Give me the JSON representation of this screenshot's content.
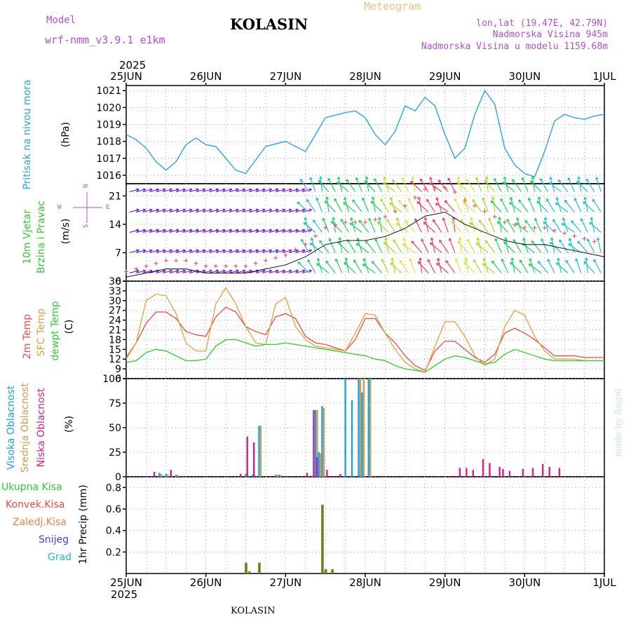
{
  "header": {
    "model_label": "Model",
    "model_name": "wrf-nmm_v3.9.1  e1km",
    "station": "KOLASIN",
    "title": "Meteogram",
    "coords": "lon,lat (19.47E, 42.79N)",
    "elevation": "Nadmorska Visina 945m",
    "model_elevation": "Nadmorska Visina u modelu 1159.68m",
    "year": "2025",
    "footer_station": "KOLASIN",
    "credit": "made by Angel"
  },
  "colors": {
    "pressure": "#2aa4e0",
    "temp_2m": "#e84a4a",
    "temp_sfc": "#e0a040",
    "dewpoint": "#2ecc2e",
    "cloud_high": "#1aa0e8",
    "cloud_mid": "#c8a050",
    "cloud_low": "#d02090",
    "precip": "#8a7020",
    "label_model": "#b050d0",
    "label_title": "#f0c080"
  },
  "x_axis": {
    "date_labels": [
      "25JUN",
      "26JUN",
      "27JUN",
      "28JUN",
      "29JUN",
      "30JUN",
      "1JUL"
    ]
  },
  "panels": {
    "pressure": {
      "label_lines": [
        "Pritisak na nivou mora"
      ],
      "unit": "(hPa)",
      "ticks": [
        "1016",
        "1017",
        "1018",
        "1019",
        "1020",
        "1021"
      ]
    },
    "wind": {
      "label_lines": [
        "10m Vjetar",
        "Brzina i Pravac"
      ],
      "unit": "(m/s)",
      "ticks": [
        "0",
        "7",
        "14",
        "21"
      ],
      "compass_w": "W",
      "compass_n": "N",
      "compass_e": "E",
      "compass_s": "S"
    },
    "temperature": {
      "label_lines": [
        "2m Temp",
        "SFC Temp",
        "dewpt Temp"
      ],
      "unit": "(C)",
      "ticks": [
        "6",
        "9",
        "12",
        "15",
        "18",
        "21",
        "24",
        "27",
        "30",
        "33",
        "36"
      ]
    },
    "clouds": {
      "label_lines": [
        "Visoka Oblacnost",
        "Srednja Oblacnost",
        "Niska Oblacnost"
      ],
      "unit": "(%)",
      "ticks": [
        "0",
        "25",
        "50",
        "75",
        "100"
      ]
    },
    "precip": {
      "legend": [
        "Ukupna Kisa",
        "Konvek.Kisa",
        "Zaledj.Kisa",
        "Snijeg",
        "Grad"
      ],
      "unit": "1hr Precip (mm)",
      "ticks": [
        "0.2",
        "0.4",
        "0.6",
        "0.8"
      ]
    }
  },
  "chart_data": [
    {
      "type": "line",
      "panel": "pressure",
      "ylabel": "(hPa)",
      "ylim": [
        1015.5,
        1021.3
      ],
      "series": [
        {
          "x": [
            0,
            3,
            6,
            9,
            12,
            15,
            18,
            21,
            24,
            27,
            30,
            33,
            36,
            42,
            48,
            54,
            60,
            66,
            69,
            72,
            75,
            78,
            81,
            84,
            87,
            90,
            93,
            96,
            99,
            102,
            105,
            108,
            111,
            114,
            117,
            120,
            123,
            126,
            129,
            132,
            135,
            138,
            141,
            144
          ],
          "values": [
            1018.4,
            1018.1,
            1017.6,
            1016.8,
            1016.3,
            1016.8,
            1017.8,
            1018.2,
            1017.8,
            1017.7,
            1017.0,
            1016.3,
            1016.1,
            1017.7,
            1018.0,
            1017.4,
            1019.4,
            1019.7,
            1019.8,
            1019.4,
            1018.4,
            1017.8,
            1018.6,
            1020.1,
            1019.8,
            1020.6,
            1020.1,
            1018.4,
            1017.0,
            1017.6,
            1019.6,
            1021.0,
            1020.2,
            1017.6,
            1016.6,
            1016.1,
            1015.9,
            1017.4,
            1019.2,
            1019.6,
            1019.4,
            1019.3,
            1019.5,
            1019.6
          ]
        }
      ]
    },
    {
      "type": "line",
      "panel": "temperature",
      "ylabel": "(C)",
      "ylim": [
        6,
        36
      ],
      "series": [
        {
          "name": "2m Temp",
          "x": [
            0,
            3,
            6,
            9,
            12,
            15,
            18,
            21,
            24,
            27,
            30,
            33,
            36,
            39,
            42,
            45,
            48,
            51,
            54,
            57,
            60,
            63,
            66,
            69,
            72,
            75,
            78,
            81,
            84,
            87,
            90,
            93,
            96,
            99,
            102,
            105,
            108,
            111,
            114,
            117,
            120,
            123,
            126,
            129,
            132,
            135,
            138,
            141,
            144
          ],
          "values": [
            12.5,
            17,
            23,
            26.5,
            26.5,
            24.5,
            20.5,
            19.5,
            19,
            25,
            28,
            26.5,
            22,
            20.5,
            19.5,
            25,
            26,
            24.5,
            19,
            17,
            16.5,
            15.5,
            14.5,
            18,
            24.5,
            24.5,
            20,
            17,
            13,
            10,
            8.5,
            14.5,
            17.5,
            17.5,
            15,
            12.5,
            11,
            13.5,
            20,
            21.5,
            20,
            18,
            15.5,
            13,
            13,
            13,
            12.5,
            12.5,
            12.5
          ]
        },
        {
          "name": "SFC Temp",
          "x": [
            0,
            3,
            6,
            9,
            12,
            15,
            18,
            21,
            24,
            27,
            30,
            33,
            36,
            39,
            42,
            45,
            48,
            51,
            54,
            57,
            60,
            63,
            66,
            69,
            72,
            75,
            78,
            81,
            84,
            87,
            90,
            93,
            96,
            99,
            102,
            105,
            108,
            111,
            114,
            117,
            120,
            123,
            126,
            129,
            132,
            135,
            138,
            141,
            144
          ],
          "values": [
            12,
            17,
            30,
            32,
            31.5,
            26,
            17,
            14.5,
            14.5,
            29,
            34,
            29,
            22,
            17,
            16.5,
            29,
            31,
            22,
            18,
            16,
            15.5,
            15,
            14.5,
            20,
            26,
            25.5,
            20,
            15,
            11,
            9,
            8,
            16,
            23.5,
            23.5,
            19,
            13,
            10,
            12,
            22,
            27,
            25.5,
            19,
            14.5,
            12,
            12,
            12,
            11.5,
            11.5,
            11.5
          ]
        },
        {
          "name": "dewpt Temp",
          "x": [
            0,
            3,
            6,
            9,
            12,
            15,
            18,
            21,
            24,
            27,
            30,
            33,
            36,
            39,
            42,
            45,
            48,
            51,
            54,
            57,
            60,
            63,
            66,
            69,
            72,
            75,
            78,
            81,
            84,
            87,
            90,
            93,
            96,
            99,
            102,
            105,
            108,
            111,
            114,
            117,
            120,
            123,
            126,
            129,
            132,
            135,
            138,
            141,
            144
          ],
          "values": [
            11,
            11.5,
            14,
            15,
            14.5,
            13,
            11.5,
            11.5,
            12,
            16,
            18,
            18,
            17,
            16,
            16.5,
            16.5,
            17,
            16.5,
            16,
            15.5,
            15,
            14.5,
            14,
            13.5,
            13,
            12,
            11.5,
            10,
            9,
            8.5,
            8,
            10,
            12,
            13,
            12.5,
            11.5,
            10.5,
            11,
            13.5,
            15,
            14,
            13,
            12,
            11.5,
            11.5,
            11.5,
            11.5,
            11.5,
            11.5
          ]
        }
      ]
    },
    {
      "type": "bar",
      "panel": "clouds",
      "ylabel": "(%)",
      "ylim": [
        0,
        100
      ],
      "series": [
        {
          "name": "Visoka Oblacnost",
          "x": [
            10,
            12,
            15,
            36,
            38,
            40,
            45,
            46,
            57,
            58,
            59,
            66,
            68,
            70,
            71,
            73
          ],
          "values": [
            4,
            3,
            2,
            3,
            2,
            52,
            2,
            2,
            68,
            25,
            72,
            100,
            78,
            100,
            86,
            100
          ]
        },
        {
          "name": "Srednja Oblacnost",
          "x": [
            10,
            12,
            15,
            36,
            38,
            40,
            45,
            46,
            57,
            58,
            59,
            66,
            68,
            70,
            71,
            73
          ],
          "values": [
            3,
            2,
            2,
            3,
            2,
            52,
            2,
            2,
            68,
            24,
            70,
            0,
            0,
            100,
            100,
            100
          ]
        },
        {
          "name": "Niska Oblacnost",
          "x": [
            9,
            14,
            35,
            37,
            39,
            55,
            57,
            58,
            61,
            65,
            101,
            103,
            105,
            108,
            110,
            113,
            114,
            116,
            120,
            123,
            126,
            128,
            131
          ],
          "values": [
            5,
            7,
            3,
            41,
            35,
            4,
            68,
            20,
            7,
            3,
            9,
            9,
            7,
            18,
            14,
            10,
            8,
            6,
            8,
            9,
            13,
            10,
            9
          ]
        }
      ]
    },
    {
      "type": "bar",
      "panel": "precip",
      "ylabel": "1hr Precip (mm)",
      "ylim": [
        0,
        0.9
      ],
      "series": [
        {
          "name": "Ukupna Kisa",
          "x": [
            36,
            37,
            40,
            59,
            60,
            62
          ],
          "values": [
            0.1,
            0.02,
            0.1,
            0.64,
            0.04,
            0.04
          ]
        },
        {
          "name": "Konvek.Kisa",
          "x": [
            36,
            37,
            40,
            59,
            60,
            62
          ],
          "values": [
            0.1,
            0.02,
            0.1,
            0.64,
            0.04,
            0.04
          ]
        }
      ]
    },
    {
      "type": "line",
      "panel": "wind",
      "ylabel": "(m/s)",
      "ylim": [
        0,
        24
      ],
      "series": [
        {
          "x": [
            0,
            6,
            12,
            18,
            24,
            30,
            36,
            42,
            48,
            54,
            60,
            66,
            72,
            78,
            84,
            90,
            96,
            102,
            108,
            114,
            120,
            126,
            132,
            138,
            144
          ],
          "values": [
            1,
            2,
            3,
            3,
            2,
            2,
            2,
            3,
            4,
            6,
            9,
            10,
            10,
            11,
            13,
            16,
            17,
            14,
            12,
            10,
            9,
            9,
            8,
            7,
            6
          ]
        }
      ]
    }
  ]
}
